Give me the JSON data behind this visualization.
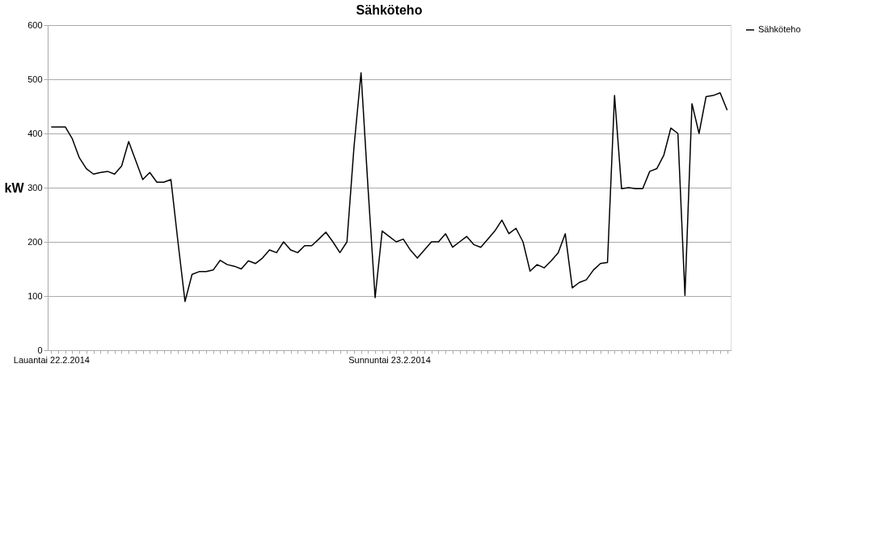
{
  "chart_data": {
    "type": "line",
    "title": "Sähköteho",
    "ylabel": "kW",
    "categories": [
      "Lauantai 22.2.2014",
      null,
      null,
      null,
      null,
      null,
      null,
      null,
      null,
      null,
      null,
      null,
      null,
      null,
      null,
      null,
      null,
      null,
      null,
      null,
      null,
      null,
      null,
      null,
      null,
      null,
      null,
      null,
      null,
      null,
      null,
      null,
      null,
      null,
      null,
      null,
      null,
      null,
      null,
      null,
      null,
      null,
      null,
      null,
      null,
      null,
      null,
      null,
      "Sunnuntai 23.2.2014",
      null,
      null,
      null,
      null,
      null,
      null,
      null,
      null,
      null,
      null,
      null,
      null,
      null,
      null,
      null,
      null,
      null,
      null,
      null,
      null,
      null,
      null,
      null,
      null,
      null,
      null,
      null,
      null,
      null,
      null,
      null,
      null,
      null,
      null,
      null,
      null,
      null,
      null,
      null,
      null,
      null,
      null,
      null,
      null,
      null,
      null,
      null,
      null
    ],
    "series": [
      {
        "name": "Sähköteho",
        "color": "#000000",
        "values": [
          412,
          412,
          412,
          390,
          355,
          335,
          325,
          328,
          330,
          325,
          340,
          385,
          350,
          315,
          328,
          310,
          310,
          315,
          200,
          90,
          140,
          145,
          145,
          148,
          166,
          158,
          155,
          150,
          165,
          160,
          170,
          185,
          180,
          200,
          185,
          180,
          193,
          193,
          205,
          218,
          200,
          180,
          200,
          375,
          512,
          298,
          97,
          220,
          210,
          200,
          205,
          185,
          170,
          185,
          200,
          200,
          215,
          190,
          200,
          210,
          195,
          190,
          205,
          220,
          240,
          215,
          225,
          200,
          146,
          158,
          152,
          165,
          180,
          215,
          115,
          125,
          130,
          148,
          160,
          162,
          470,
          298,
          300,
          298,
          298,
          330,
          335,
          360,
          410,
          400,
          101,
          455,
          400,
          468,
          470,
          475,
          443
        ]
      }
    ],
    "ylim": [
      0,
      600
    ],
    "yticks": [
      0,
      100,
      200,
      300,
      400,
      500,
      600
    ],
    "grid": "y",
    "legend": "right",
    "line_style": "solid",
    "marker": "none"
  }
}
